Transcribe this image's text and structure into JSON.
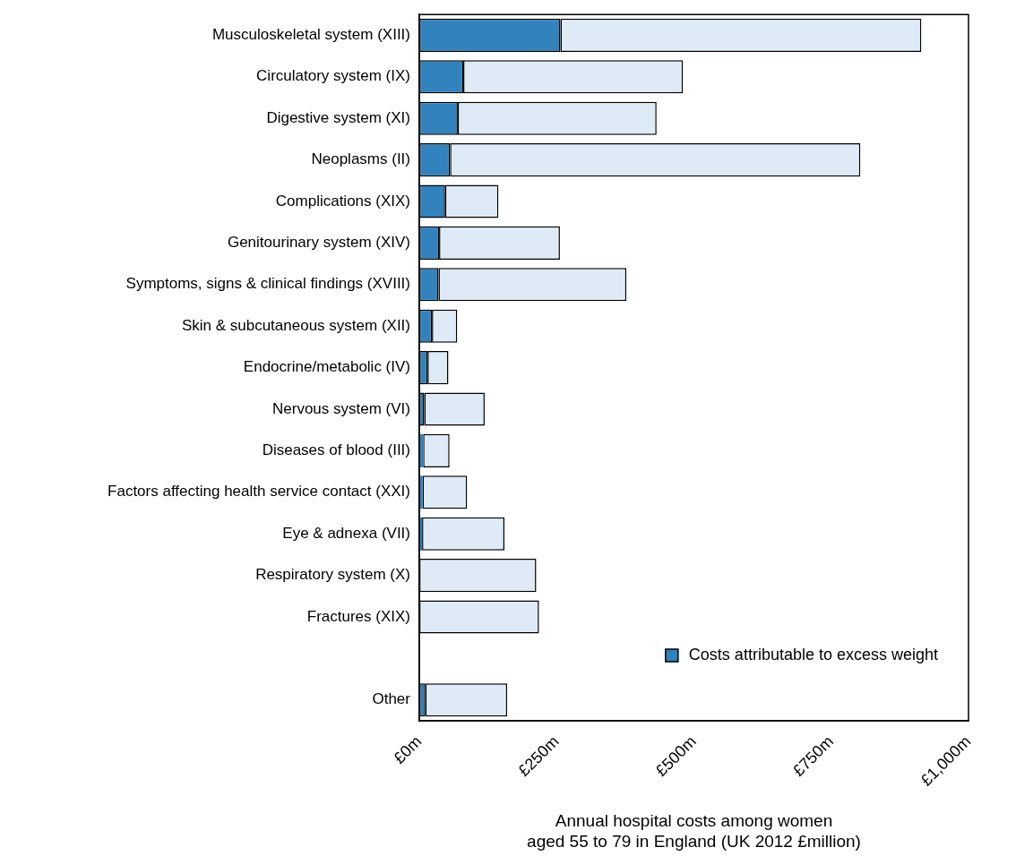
{
  "chart_data": {
    "type": "bar",
    "orientation": "horizontal",
    "stacked": true,
    "xlabel": "Annual hospital costs among women\naged 55 to 79 in England (UK 2012 £million)",
    "categories": [
      "Musculoskeletal system (XIII)",
      "Circulatory system (IX)",
      "Digestive system (XI)",
      "Neoplasms (II)",
      "Complications (XIX)",
      "Genitourinary system (XIV)",
      "Symptoms, signs & clinical findings (XVIII)",
      "Skin & subcutaneous system (XII)",
      "Endocrine/metabolic (IV)",
      "Nervous system (VI)",
      "Diseases of blood (III)",
      "Factors affecting health service contact (XXI)",
      "Eye & adnexa (VII)",
      "Respiratory system (X)",
      "Fractures (XIX)",
      null,
      "Other"
    ],
    "series": [
      {
        "name": "Costs attributable to excess weight",
        "color": "#3182bd",
        "values": [
          257,
          80,
          70,
          56,
          47,
          36,
          35,
          23,
          15,
          9,
          7,
          6,
          5,
          null,
          0,
          null,
          11
        ]
      },
      {
        "color": "#deebf7",
        "values": [
          657,
          400,
          362,
          747,
          97,
          220,
          342,
          46,
          38,
          110,
          48,
          81,
          150,
          213,
          218,
          null,
          149
        ]
      }
    ],
    "xlim": [
      0,
      1000
    ],
    "xticks": [
      {
        "value": 0,
        "label": "£0m"
      },
      {
        "value": 250,
        "label": "£250m"
      },
      {
        "value": 500,
        "label": "£500m"
      },
      {
        "value": 750,
        "label": "£750m"
      },
      {
        "value": 1000,
        "label": "£1,000m"
      }
    ],
    "grid": false,
    "legend": "bottom right"
  }
}
